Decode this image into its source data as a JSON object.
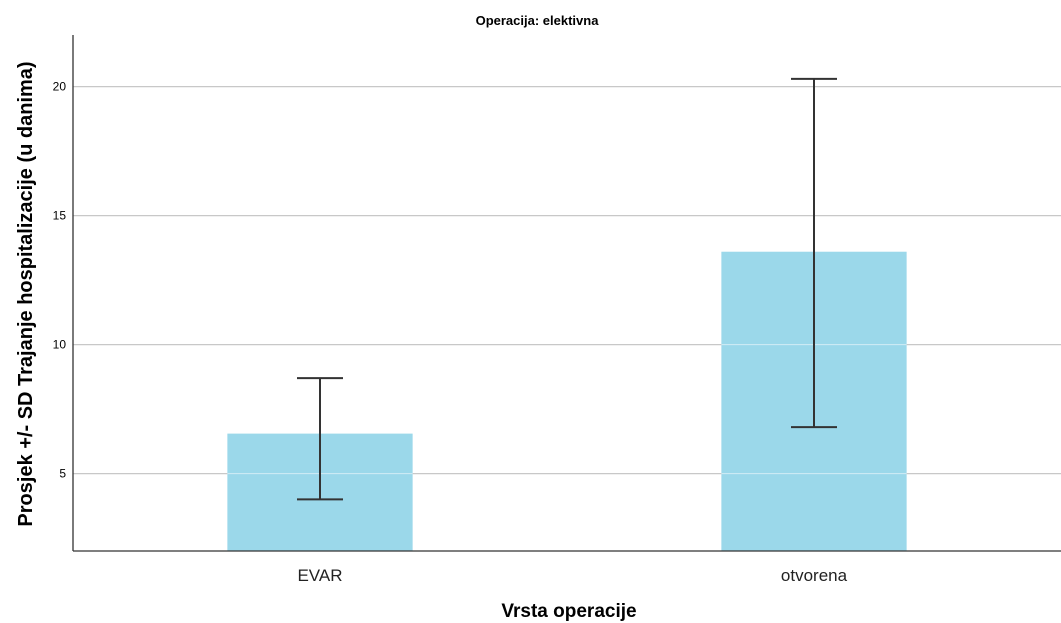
{
  "chart_data": {
    "type": "bar",
    "title": "Operacija: elektivna",
    "xlabel": "Vrsta operacije",
    "ylabel": "Prosjek +/- SD Trajanje hospitalizacije (u danima)",
    "categories": [
      "EVAR",
      "otvorena"
    ],
    "values": [
      6.55,
      13.6
    ],
    "error_bars": {
      "type": "SD",
      "lower": [
        4.0,
        6.8
      ],
      "upper": [
        8.7,
        20.3
      ]
    },
    "ylim": [
      2.0,
      22.0
    ],
    "yticks": [
      5,
      10,
      15,
      20
    ],
    "ytick_labels": [
      "5",
      "10",
      "15",
      "20"
    ],
    "grid": true,
    "bar_color": "#9bd8ea",
    "grid_color": "#c8c8c8",
    "errorbar_color": "#333333"
  }
}
